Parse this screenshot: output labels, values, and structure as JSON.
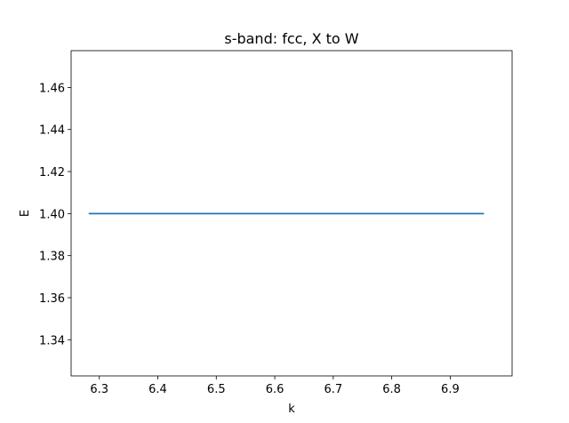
{
  "chart_data": {
    "type": "line",
    "title": "s-band: fcc, X to W",
    "xlabel": "k",
    "ylabel": "E",
    "xlim": [
      6.2518,
      7.0058
    ],
    "ylim": [
      1.3228,
      1.4775
    ],
    "x_ticks": [
      {
        "value": 6.3,
        "label": "6.3"
      },
      {
        "value": 6.4,
        "label": "6.4"
      },
      {
        "value": 6.5,
        "label": "6.5"
      },
      {
        "value": 6.6,
        "label": "6.6"
      },
      {
        "value": 6.7,
        "label": "6.7"
      },
      {
        "value": 6.8,
        "label": "6.8"
      },
      {
        "value": 6.9,
        "label": "6.9"
      }
    ],
    "y_ticks": [
      {
        "value": 1.34,
        "label": "1.34"
      },
      {
        "value": 1.36,
        "label": "1.36"
      },
      {
        "value": 1.38,
        "label": "1.38"
      },
      {
        "value": 1.4,
        "label": "1.40"
      },
      {
        "value": 1.42,
        "label": "1.42"
      },
      {
        "value": 1.44,
        "label": "1.44"
      },
      {
        "value": 1.46,
        "label": "1.46"
      }
    ],
    "grid": false,
    "legend": "none",
    "series": [
      {
        "color": "#1f77b4",
        "x": [
          6.2832,
          6.9563
        ],
        "y": [
          1.4,
          1.4
        ]
      }
    ]
  }
}
